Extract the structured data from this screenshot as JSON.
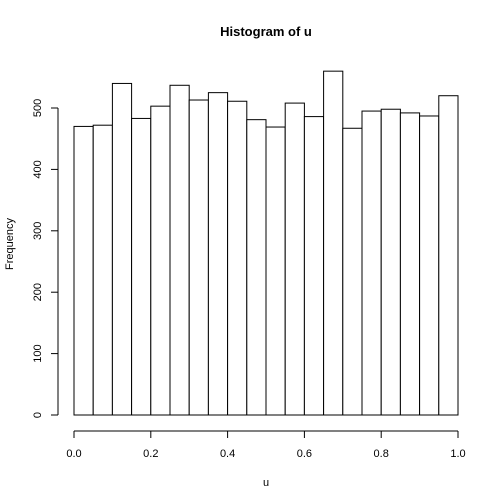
{
  "chart_data": {
    "type": "bar",
    "title": "Histogram of u",
    "xlabel": "u",
    "ylabel": "Frequency",
    "bin_width": 0.05,
    "bins": [
      {
        "start": 0.0,
        "end": 0.05,
        "count": 470
      },
      {
        "start": 0.05,
        "end": 0.1,
        "count": 472
      },
      {
        "start": 0.1,
        "end": 0.15,
        "count": 540
      },
      {
        "start": 0.15,
        "end": 0.2,
        "count": 483
      },
      {
        "start": 0.2,
        "end": 0.25,
        "count": 503
      },
      {
        "start": 0.25,
        "end": 0.3,
        "count": 537
      },
      {
        "start": 0.3,
        "end": 0.35,
        "count": 513
      },
      {
        "start": 0.35,
        "end": 0.4,
        "count": 525
      },
      {
        "start": 0.4,
        "end": 0.45,
        "count": 511
      },
      {
        "start": 0.45,
        "end": 0.5,
        "count": 481
      },
      {
        "start": 0.5,
        "end": 0.55,
        "count": 469
      },
      {
        "start": 0.55,
        "end": 0.6,
        "count": 508
      },
      {
        "start": 0.6,
        "end": 0.65,
        "count": 486
      },
      {
        "start": 0.65,
        "end": 0.7,
        "count": 560
      },
      {
        "start": 0.7,
        "end": 0.75,
        "count": 467
      },
      {
        "start": 0.75,
        "end": 0.8,
        "count": 495
      },
      {
        "start": 0.8,
        "end": 0.85,
        "count": 498
      },
      {
        "start": 0.85,
        "end": 0.9,
        "count": 492
      },
      {
        "start": 0.9,
        "end": 0.95,
        "count": 487
      },
      {
        "start": 0.95,
        "end": 1.0,
        "count": 520
      }
    ],
    "xlim": [
      0,
      1
    ],
    "ylim": [
      0,
      560
    ],
    "x_ticks": [
      "0.0",
      "0.2",
      "0.4",
      "0.6",
      "0.8",
      "1.0"
    ],
    "y_ticks": [
      "0",
      "100",
      "200",
      "300",
      "400",
      "500"
    ],
    "grid": false,
    "legend": "none"
  }
}
